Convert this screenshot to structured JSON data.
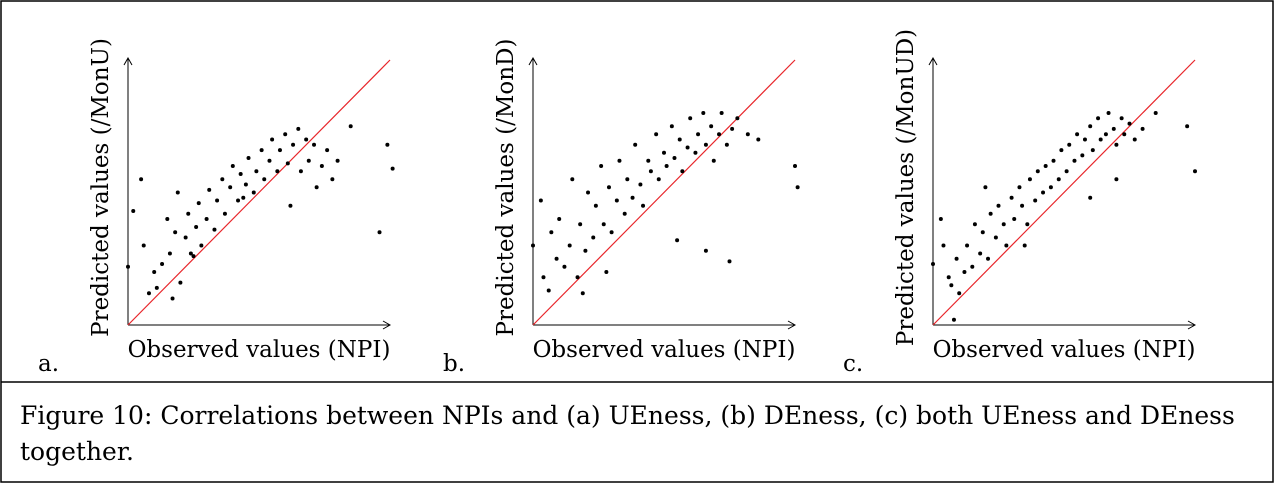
{
  "chart_data": [
    {
      "type": "scatter",
      "panel_label": "a.",
      "xlabel": "Observed values (NPI)",
      "ylabel": "Predicted values (/MonU)",
      "xlim": [
        0,
        1
      ],
      "ylim": [
        0,
        1
      ],
      "color": "#000000",
      "reference_line_color": "#e8252a",
      "x": [
        0.0,
        0.02,
        0.05,
        0.06,
        0.08,
        0.1,
        0.11,
        0.13,
        0.15,
        0.16,
        0.18,
        0.19,
        0.2,
        0.22,
        0.23,
        0.24,
        0.26,
        0.27,
        0.28,
        0.3,
        0.31,
        0.33,
        0.34,
        0.36,
        0.37,
        0.39,
        0.4,
        0.42,
        0.43,
        0.45,
        0.46,
        0.48,
        0.49,
        0.51,
        0.52,
        0.54,
        0.55,
        0.57,
        0.58,
        0.6,
        0.61,
        0.62,
        0.63,
        0.65,
        0.66,
        0.68,
        0.69,
        0.71,
        0.72,
        0.74,
        0.76,
        0.78,
        0.8,
        0.85,
        0.96,
        0.99,
        1.01,
        0.17,
        0.25,
        0.44
      ],
      "y": [
        0.22,
        0.43,
        0.55,
        0.3,
        0.12,
        0.2,
        0.14,
        0.23,
        0.4,
        0.27,
        0.35,
        0.5,
        0.16,
        0.33,
        0.42,
        0.27,
        0.37,
        0.46,
        0.3,
        0.4,
        0.51,
        0.36,
        0.47,
        0.55,
        0.42,
        0.52,
        0.6,
        0.47,
        0.57,
        0.53,
        0.63,
        0.5,
        0.58,
        0.66,
        0.55,
        0.62,
        0.7,
        0.58,
        0.66,
        0.72,
        0.61,
        0.45,
        0.68,
        0.74,
        0.58,
        0.7,
        0.62,
        0.68,
        0.52,
        0.6,
        0.66,
        0.55,
        0.62,
        0.75,
        0.35,
        0.68,
        0.59,
        0.1,
        0.26,
        0.48
      ]
    },
    {
      "type": "scatter",
      "panel_label": "b.",
      "xlabel": "Observed values (NPI)",
      "ylabel": "Predicted values (/MonD)",
      "xlim": [
        0,
        1
      ],
      "ylim": [
        0,
        1
      ],
      "color": "#000000",
      "reference_line_color": "#e8252a",
      "x": [
        0.0,
        0.03,
        0.04,
        0.06,
        0.07,
        0.09,
        0.1,
        0.12,
        0.14,
        0.15,
        0.17,
        0.18,
        0.2,
        0.21,
        0.23,
        0.24,
        0.26,
        0.27,
        0.29,
        0.3,
        0.32,
        0.33,
        0.35,
        0.36,
        0.38,
        0.39,
        0.41,
        0.42,
        0.44,
        0.45,
        0.47,
        0.48,
        0.5,
        0.51,
        0.53,
        0.54,
        0.56,
        0.57,
        0.59,
        0.6,
        0.62,
        0.63,
        0.65,
        0.66,
        0.68,
        0.69,
        0.71,
        0.72,
        0.74,
        0.76,
        0.78,
        0.82,
        0.86,
        1.0,
        1.01,
        0.19,
        0.28,
        0.55,
        0.66,
        0.75
      ],
      "y": [
        0.3,
        0.47,
        0.18,
        0.13,
        0.35,
        0.25,
        0.4,
        0.22,
        0.3,
        0.55,
        0.18,
        0.38,
        0.28,
        0.5,
        0.33,
        0.45,
        0.6,
        0.38,
        0.52,
        0.35,
        0.47,
        0.62,
        0.42,
        0.55,
        0.48,
        0.68,
        0.53,
        0.45,
        0.62,
        0.58,
        0.72,
        0.55,
        0.65,
        0.6,
        0.75,
        0.63,
        0.7,
        0.58,
        0.67,
        0.78,
        0.65,
        0.72,
        0.8,
        0.68,
        0.75,
        0.62,
        0.72,
        0.8,
        0.68,
        0.74,
        0.78,
        0.72,
        0.7,
        0.6,
        0.52,
        0.12,
        0.2,
        0.32,
        0.28,
        0.24
      ]
    },
    {
      "type": "scatter",
      "panel_label": "c.",
      "xlabel": "Observed values (NPI)",
      "ylabel": "Predicted values (/MonUD)",
      "xlim": [
        0,
        1
      ],
      "ylim": [
        0,
        1
      ],
      "color": "#000000",
      "reference_line_color": "#e8252a",
      "x": [
        0.0,
        0.03,
        0.04,
        0.06,
        0.07,
        0.09,
        0.1,
        0.12,
        0.13,
        0.15,
        0.16,
        0.18,
        0.19,
        0.21,
        0.22,
        0.24,
        0.25,
        0.27,
        0.28,
        0.3,
        0.31,
        0.33,
        0.34,
        0.36,
        0.37,
        0.39,
        0.4,
        0.42,
        0.43,
        0.45,
        0.46,
        0.48,
        0.49,
        0.51,
        0.52,
        0.54,
        0.55,
        0.57,
        0.58,
        0.6,
        0.61,
        0.63,
        0.64,
        0.66,
        0.67,
        0.69,
        0.7,
        0.72,
        0.73,
        0.75,
        0.77,
        0.8,
        0.85,
        0.97,
        1.0,
        0.08,
        0.2,
        0.35,
        0.6,
        0.7
      ],
      "y": [
        0.23,
        0.4,
        0.3,
        0.18,
        0.15,
        0.25,
        0.12,
        0.2,
        0.3,
        0.22,
        0.38,
        0.27,
        0.35,
        0.25,
        0.42,
        0.33,
        0.45,
        0.38,
        0.3,
        0.48,
        0.4,
        0.52,
        0.45,
        0.38,
        0.55,
        0.47,
        0.58,
        0.5,
        0.6,
        0.52,
        0.62,
        0.55,
        0.66,
        0.58,
        0.68,
        0.62,
        0.72,
        0.64,
        0.7,
        0.75,
        0.66,
        0.78,
        0.7,
        0.72,
        0.8,
        0.74,
        0.68,
        0.78,
        0.72,
        0.76,
        0.7,
        0.74,
        0.8,
        0.75,
        0.58,
        0.02,
        0.52,
        0.3,
        0.48,
        0.55
      ]
    }
  ],
  "figure_caption": "Figure 10: Correlations between NPIs and (a) UEness, (b) DEness, (c) both UEness and DEness together."
}
